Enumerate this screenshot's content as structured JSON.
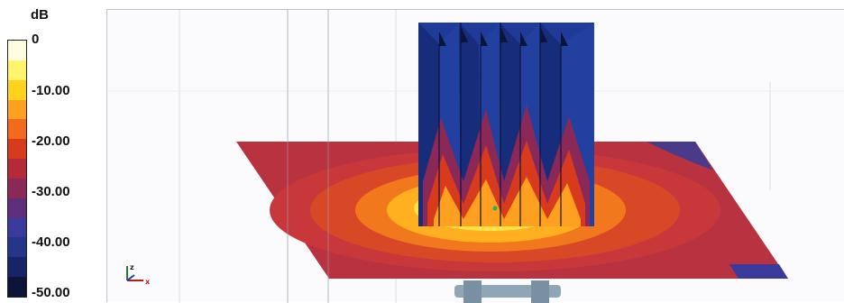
{
  "legend": {
    "unit": "dB",
    "ticks": [
      {
        "label": "0",
        "value": 0
      },
      {
        "label": "-10.00",
        "value": -10
      },
      {
        "label": "-20.00",
        "value": -20
      },
      {
        "label": "-30.00",
        "value": -30
      },
      {
        "label": "-40.00",
        "value": -40
      },
      {
        "label": "-50.00",
        "value": -50
      }
    ],
    "colors": [
      "#fffde0",
      "#fff46a",
      "#ffd21c",
      "#ffa020",
      "#f26a1c",
      "#d83a1e",
      "#b42a3a",
      "#8a2858",
      "#5c2e7c",
      "#3a3a9c",
      "#24368a",
      "#18246a",
      "#0c143a"
    ]
  },
  "viewport": {
    "axes_icon": "xyz-axes-icon",
    "axis_labels": {
      "z": "z",
      "x": "x"
    },
    "colors": {
      "plane_outer": "#b83240",
      "plane_mid": "#d84826",
      "plane_inner1": "#f2781e",
      "plane_inner2": "#ffb020",
      "plane_core": "#ffe24a",
      "fin_blue": "#1f3a98",
      "fin_dark": "#121e5a",
      "antenna_mount": "#8fa6b6"
    }
  }
}
